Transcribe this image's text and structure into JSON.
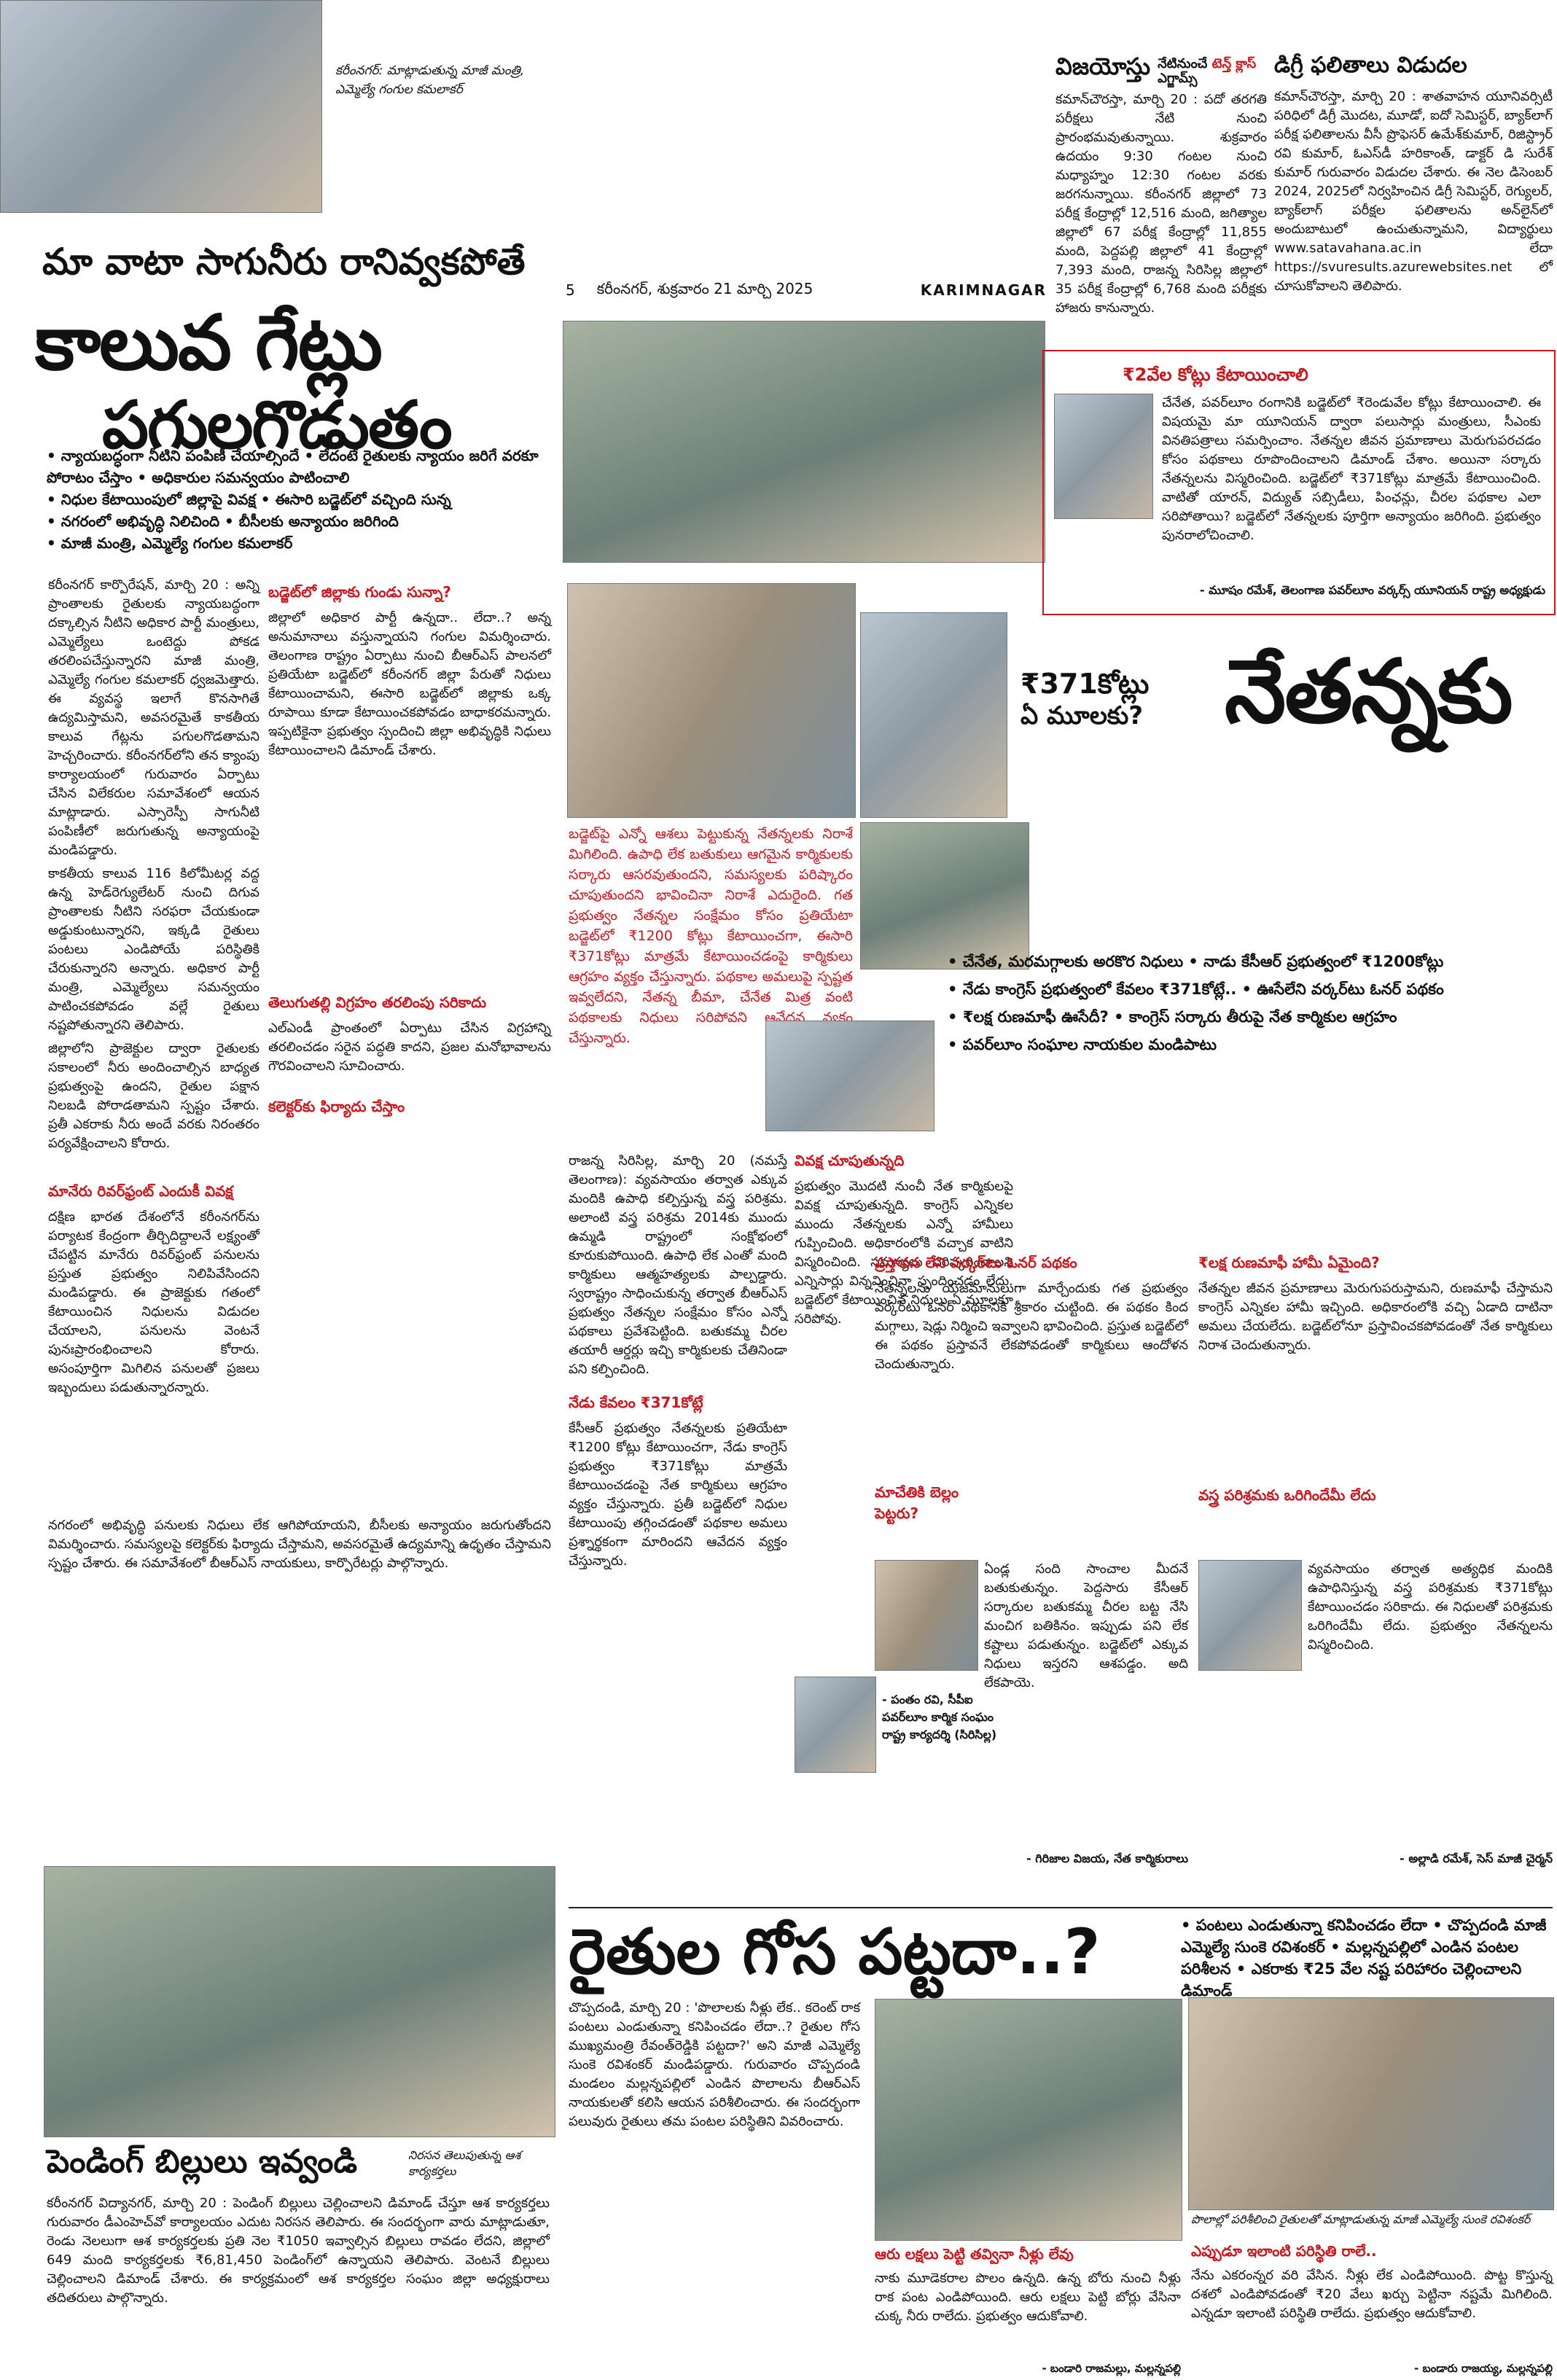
{
  "masthead": {
    "page_no": "5",
    "dateline": "కరీంనగర్, శుక్రవారం 21 మార్చి 2025",
    "section": "KARIMNAGAR"
  },
  "photo_caption_top": "కరీంనగర్: మాట్లాడుతున్న మాజీ మంత్రి, ఎమ్మెల్యే గంగుల కమలాకర్",
  "main_story": {
    "kicker": "మా వాటా సాగునీరు రానివ్వకపోతే",
    "headline_1": "కాలువ గేట్లు",
    "headline_2": "పగులగొడుతం",
    "bullets": [
      "న్యాయబద్ధంగా నీటిని పంపిణీ చేయాల్సిందే • లేదంటే రైతులకు న్యాయం జరిగే వరకూ పోరాటం చేస్తాం • అధికారుల సమన్వయం పాటించాలి",
      "నిధుల కేటాయింపులో జిల్లాపై వివక్ష • ఈసారి బడ్జెట్‌లో వచ్చింది సున్న",
      "నగరంలో అభివృద్ధి నిలిచింది • బీసీలకు అన్యాయం జరిగింది",
      "మాజీ మంత్రి, ఎమ్మెల్యే గంగుల కమలాకర్"
    ],
    "col1_text": "కరీంనగర్ కార్పొరేషన్, మార్చి 20 : అన్ని ప్రాంతాలకు రైతులకు న్యాయబద్ధంగా దక్కాల్సిన నీటిని అధికార పార్టీ మంత్రులు, ఎమ్మెల్యేలు ఒంటెద్దు పోకడ తరలింపచేస్తున్నారని మాజీ మంత్రి, ఎమ్మెల్యే గంగుల కమలాకర్ ధ్వజమెత్తారు. ఈ వ్యవస్థ ఇలాగే కొనసాగితే ఉద్యమిస్తామని, అవసరమైతే కాకతీయ కాలువ గేట్లను పగులగొడతామని హెచ్చరించారు. కరీంనగర్‌లోని తన క్యాంపు కార్యాలయంలో గురువారం ఏర్పాటు చేసిన విలేకరుల సమావేశంలో ఆయన మాట్లాడారు. ఎస్సారెస్పీ సాగునీటి పంపిణీలో జరుగుతున్న అన్యాయంపై మండిపడ్డారు.",
    "col1_text_2": "కాకతీయ కాలువ 116 కిలోమీటర్ల వద్ద ఉన్న హెడ్‌రెగ్యులేటర్ నుంచి దిగువ ప్రాంతాలకు నీటిని సరఫరా చేయకుండా అడ్డుకుంటున్నారని, ఇక్కడి రైతులు పంటలు ఎండిపోయే పరిస్థితికి చేరుకున్నారని అన్నారు. అధికార పార్టీ మంత్రి, ఎమ్మెల్యేలు సమన్వయం పాటించకపోవడం వల్లే రైతులు నష్టపోతున్నారని తెలిపారు.",
    "col1_text_3": "జిల్లాలోని ప్రాజెక్టుల ద్వారా రైతులకు సకాలంలో నీరు అందించాల్సిన బాధ్యత ప్రభుత్వంపై ఉందని, రైతుల పక్షాన నిలబడి పోరాడతామని స్పష్టం చేశారు. ప్రతీ ఎకరాకు నీరు అందే వరకు నిరంతరం పర్యవేక్షించాలని కోరారు.",
    "sub1": "బడ్జెట్‌లో జిల్లాకు గుండు సున్నా?",
    "sub1_text": "జిల్లాలో అధికార పార్టీ ఉన్నదా.. లేదా..? అన్న అనుమానాలు వస్తున్నాయని గంగుల విమర్శించారు. తెలంగాణ రాష్ట్రం ఏర్పాటు నుంచి బీఆర్ఎస్ పాలనలో ప్రతియేటా బడ్జెట్‌లో కరీంనగర్ జిల్లా పేరుతో నిధులు కేటాయించామని, ఈసారి బడ్జెట్‌లో జిల్లాకు ఒక్క రూపాయి కూడా కేటాయించకపోవడం బాధాకరమన్నారు. ఇప్పటికైనా ప్రభుత్వం స్పందించి జిల్లా అభివృద్ధికి నిధులు కేటాయించాలని డిమాండ్ చేశారు.",
    "sub2": "మానేరు రివర్‌ఫ్రంట్ ఎందుకీ వివక్ష",
    "sub2_text": "దక్షిణ భారత దేశంలోనే కరీంనగర్‌ను పర్యాటక కేంద్రంగా తీర్చిదిద్దాలనే లక్ష్యంతో చేపట్టిన మానేరు రివర్‌ఫ్రంట్ పనులను ప్రస్తుత ప్రభుత్వం నిలిపివేసిందని మండిపడ్డారు. ఈ ప్రాజెక్టుకు గతంలో కేటాయించిన నిధులను విడుదల చేయాలని, పనులను వెంటనే పునఃప్రారంభించాలని కోరారు. అసంపూర్తిగా మిగిలిన పనులతో ప్రజలు ఇబ్బందులు పడుతున్నారన్నారు.",
    "sub3": "తెలుగుతల్లి విగ్రహం తరలింపు సరికాదు",
    "sub3_text": "ఎల్‌ఎండీ ప్రాంతంలో ఏర్పాటు చేసిన విగ్రహాన్ని తరలించడం సరైన పద్ధతి కాదని, ప్రజల మనోభావాలను గౌరవించాలని సూచించారు.",
    "sub4": "కలెక్టర్‌కు ఫిర్యాదు చేస్తాం",
    "sub4_text": "నగరంలో అభివృద్ధి పనులకు నిధులు లేక ఆగిపోయాయని, బీసీలకు అన్యాయం జరుగుతోందని విమర్శించారు. సమస్యలపై కలెక్టర్‌కు ఫిర్యాదు చేస్తామని, అవసరమైతే ఉద్యమాన్ని ఉధృతం చేస్తామని స్పష్టం చేశారు. ఈ సమావేశంలో బీఆర్ఎస్ నాయకులు, కార్పొరేటర్లు పాల్గొన్నారు."
  },
  "vijayotsav": {
    "headline": "విజయోస్తు",
    "side_1": "నేటినుంచే",
    "side_2": "టెన్త్ క్లాస్",
    "side_3": "ఎగ్జామ్స్",
    "text": "కమాన్‌చౌరస్తా, మార్చి 20 : పదో తరగతి పరీక్షలు నేటి నుంచి ప్రారంభమవుతున్నాయి. శుక్రవారం ఉదయం 9:30 గంటల నుంచి మధ్యాహ్నం 12:30 గంటల వరకు జరగనున్నాయి. కరీంనగర్ జిల్లాలో 73 పరీక్ష కేంద్రాల్లో 12,516 మంది, జగిత్యాల జిల్లాలో 67 పరీక్ష కేంద్రాల్లో 11,855 మంది, పెద్దపల్లి జిల్లాలో 41 కేంద్రాల్లో 7,393 మంది, రాజన్న సిరిసిల్ల జిల్లాలో 35 పరీక్ష కేంద్రాల్లో 6,768 మంది పరీక్షకు హాజరు కానున్నారు."
  },
  "degree": {
    "headline": "డిగ్రీ ఫలితాలు విడుదల",
    "text": "కమాన్‌చౌరస్తా, మార్చి 20 : శాతవాహన యూనివర్సిటీ పరిధిలో డిగ్రీ మొదట, మూడో, ఐదో సెమిస్టర్, బ్యాక్‌లాగ్ పరీక్ష ఫలితాలను వీసీ ప్రొఫెసర్ ఉమేశ్‌కుమార్, రిజిస్ట్రార్ రవి కుమార్, ఓఎస్‌డీ హరికాంత్, డాక్టర్ డి సురేశ్ కుమార్ గురువారం విడుదల చేశారు. ఈ నెల డిసెంబర్ 2024, 2025లో నిర్వహించిన డిగ్రీ సెమిస్టర్, రెగ్యులర్, బ్యాక్‌లాగ్ పరీక్షల ఫలితాలను అన్‌లైన్‌లో అందుబాటులో ఉంచుతున్నామని, విద్యార్థులు www.satavahana.ac.in లేదా https://svuresults.azurewebsites.net లో చూసుకోవాలని తెలిపారు."
  },
  "nethanna": {
    "box_head": "₹2వేల కోట్లు కేటాయించాలి",
    "box_text": "చేనేత, పవర్‌లూం రంగానికి బడ్జెట్‌లో ₹రెండువేల కోట్లు కేటాయించాలి. ఈ విషయమై మా యూనియన్ ద్వారా పలుసార్లు మంత్రులు, సీఎంకు వినతిపత్రాలు సమర్పించాం. నేతన్నల జీవన ప్రమాణాలు మెరుగుపరచడం కోసం పథకాలు రూపొందించాలని డిమాండ్ చేశాం. అయినా సర్కారు నేతన్నలను విస్మరించింది. బడ్జెట్‌లో ₹371కోట్లు మాత్రమే కేటాయించింది. వాటితో యారన్, విద్యుత్ సబ్సిడీలు, పింఛన్లు, చీరల పథకాల ఎలా సరిపోతాయి? బడ్జెట్‌లో నేతన్నలకు పూర్తిగా అన్యాయం జరిగింది. ప్రభుత్వం పునరాలోచించాలి.",
    "box_credit": "- మూషం రమేశ్, తెలంగాణ పవర్‌లూం వర్కర్స్ యూనియన్ రాష్ట్ర అధ్యక్షుడు",
    "kicker_1": "₹371కోట్లు",
    "kicker_2": "ఏ మూలకు?",
    "headline": "నేతన్నకు",
    "red_intro": "బడ్జెట్‌పై ఎన్నో ఆశలు పెట్టుకున్న నేతన్నలకు నిరాశే మిగిలింది. ఉపాధి లేక బతుకులు ఆగమైన కార్మికులకు సర్కారు ఆసరవుతుందని, సమస్యలకు పరిష్కారం చూపుతుందని భావించినా నిరాశే ఎదురైంది. గత ప్రభుత్వం నేతన్నల సంక్షేమం కోసం ప్రతియేటా బడ్జెట్‌లో ₹1200 కోట్లు కేటాయించగా, ఈసారి ₹371కోట్లు మాత్రమే కేటాయించడంపై కార్మికులు ఆగ్రహం వ్యక్తం చేస్తున్నారు. పథకాల అమలుపై స్పష్టత ఇవ్వలేదని, నేతన్న బీమా, చేనేత మిత్ర వంటి పథకాలకు నిధులు సరిపోవని ఆవేదన వ్యక్తం చేస్తున్నారు.",
    "bullets": [
      "చేనేత, మరమగ్గాలకు అరకొర నిధులు • నాడు కేసీఆర్ ప్రభుత్వంలో ₹1200కోట్లు",
      "నేడు కాంగ్రెస్ ప్రభుత్వంలో కేవలం ₹371కోట్లే.. • ఊసేలేని వర్కర్‌టు ఓనర్ పథకం",
      "₹లక్ష రుణమాఫీ ఊసేదీ? • కాంగ్రెస్ సర్కారు తీరుపై నేత కార్మికుల ఆగ్రహం",
      "పవర్‌లూం సంఘాల నాయకుల మండిపాటు"
    ],
    "col_a": "రాజన్న సిరిసిల్ల, మార్చి 20 (నమస్తే తెలంగాణ): వ్యవసాయం తర్వాత ఎక్కువ మందికి ఉపాధి కల్పిస్తున్న వస్త్ర పరిశ్రమ. అలాంటి వస్త్ర పరిశ్రమ 2014కు ముందు ఉమ్మడి రాష్ట్రంలో సంక్షోభంలో కూరుకుపోయింది. ఉపాధి లేక ఎంతో మంది కార్మికులు ఆత్మహత్యలకు పాల్పడ్డారు. స్వరాష్ట్రం సాధించుకున్న తర్వాత బీఆర్ఎస్ ప్రభుత్వం నేతన్నల సంక్షేమం కోసం ఎన్నో పథకాలు ప్రవేశపెట్టింది. బతుకమ్మ చీరల తయారీ ఆర్డర్లు ఇచ్చి కార్మికులకు చేతినిండా పని కల్పించింది.",
    "sub_a": "నేడు కేవలం ₹371కోట్లే",
    "col_a2": "కేసీఆర్ ప్రభుత్వం నేతన్నలకు ప్రతియేటా ₹1200 కోట్లు కేటాయించగా, నేడు కాంగ్రెస్ ప్రభుత్వం ₹371కోట్లు మాత్రమే కేటాయించడంపై నేత కార్మికులు ఆగ్రహం వ్యక్తం చేస్తున్నారు. ప్రతీ బడ్జెట్‌లో నిధుల కేటాయింపు తగ్గించడంతో పథకాల అమలు ప్రశ్నార్థకంగా మారిందని ఆవేదన వ్యక్తం చేస్తున్నారు.",
    "sub_b": "వివక్ష చూపుతున్నది",
    "col_b": "ప్రభుత్వం మొదటి నుంచీ నేత కార్మికులపై వివక్ష చూపుతున్నది. కాంగ్రెస్ ఎన్నికల ముందు నేతన్నలకు ఎన్నో హామీలు గుప్పించింది. అధికారంలోకి వచ్చాక వాటిని విస్మరించింది. సమస్యలు పరిష్కరించాలని ఎన్నిసార్లు విన్నవించినా స్పందించడం లేదు. బడ్జెట్‌లో కేటాయించిన నిధులు ఏ మూలకూ సరిపోవు.",
    "credit_b": "- పంతం రవి, సీపీఐ పవర్‌లూం కార్మిక సంఘం రాష్ట్ర కార్యదర్శి (సిరిసిల్ల)",
    "sub_c": "ప్రస్తావన లేని వర్కర్‌టు ఓనర్ పథకం",
    "col_c": "నేతన్నలను యజమానులుగా మార్చేందుకు గత ప్రభుత్వం వర్కర్‌టు ఓనర్ పథకానికి శ్రీకారం చుట్టింది. ఈ పథకం కింద మగ్గాలు, షెడ్లు నిర్మించి ఇవ్వాలని భావించింది. ప్రస్తుత బడ్జెట్‌లో ఈ పథకం ప్రస్తావనే లేకపోవడంతో కార్మికులు ఆందోళన చెందుతున్నారు.",
    "sub_d": "మాచేతికి బెల్లం పెట్టరు?",
    "col_d": "ఏండ్ల సంది సాంచాల మీదనే బతుకుతున్నం. పెద్దసారు కేసీఆర్ సర్కారుల బతుకమ్మ చీరల బట్ట నేసి మంచిగ బతికినం. ఇప్పుడు పని లేక కష్టాలు పడుతున్నం. బడ్జెట్‌లో ఎక్కువ నిధులు ఇస్తరని ఆశపడ్డం. అది లేకపాయె.",
    "credit_d": "- గిరిజాల విజయ, నేత కార్మికురాలు",
    "sub_e": "₹లక్ష రుణమాఫీ హామీ ఏమైంది?",
    "col_e": "నేతన్నల జీవన ప్రమాణాలు మెరుగుపరుస్తామని, రుణమాఫీ చేస్తామని కాంగ్రెస్ ఎన్నికల హామీ ఇచ్చింది. అధికారంలోకి వచ్చి ఏడాది దాటినా అమలు చేయలేదు. బడ్జెట్‌లోనూ ప్రస్తావించకపోవడంతో నేత కార్మికులు నిరాశ చెందుతున్నారు.",
    "sub_f": "వస్త్ర పరిశ్రమకు ఒరిగిందేమీ లేదు",
    "col_f": "వ్యవసాయం తర్వాత అత్యధిక మందికి ఉపాధినిస్తున్న వస్త్ర పరిశ్రమకు ₹371కోట్లు కేటాయించడం సరికాదు. ఈ నిధులతో పరిశ్రమకు ఒరిగిందేమీ లేదు. ప్రభుత్వం నేతన్నలను విస్మరించింది.",
    "credit_f": "- అల్లాడి రమేశ్, సెస్ మాజీ చైర్మన్"
  },
  "farmers": {
    "headline": "రైతుల గోస పట్టదా..?",
    "bullets_text": "• పంటలు ఎండుతున్నా కనిపించడం లేదా • చొప్పదండి మాజీ ఎమ్మెల్యే సుంకె రవిశంకర్ • మల్లన్నపల్లిలో ఎండిన పంటల పరిశీలన • ఎకరాకు ₹25 వేల నష్ట పరిహారం చెల్లించాలని డిమాండ్",
    "text": "చొప్పదండి, మార్చి 20 : 'పొలాలకు నీళ్లు లేక.. కరెంట్ రాక పంటలు ఎండుతున్నా కనిపించడం లేదా..? రైతుల గోస ముఖ్యమంత్రి రేవంత్‌రెడ్డికి పట్టదా?' అని మాజీ ఎమ్మెల్యే సుంకె రవిశంకర్ మండిపడ్డారు. గురువారం చొప్పదండి మండలం మల్లన్నపల్లిలో ఎండిన పొలాలను బీఆర్ఎస్ నాయకులతో కలిసి ఆయన పరిశీలించారు. ఈ సందర్భంగా పలువురు రైతులు తమ పంటల పరిస్థితిని వివరించారు.",
    "sub": "ఆరు లక్షలు పెట్టి తవ్వినా నీళ్లు లేవు",
    "text2": "నాకు మూడెకరాల పొలం ఉన్నది. ఉన్న బోరు నుంచి నీళ్లు రాక పంట ఎండిపోయింది. ఆరు లక్షలు పెట్టి బోర్లు వేసినా చుక్క నీరు రాలేదు. ప్రభుత్వం ఆదుకోవాలి.",
    "credit": "- బండారి రాజమల్లు, మల్లన్నపల్లి",
    "photo_cap": "పొలాల్లో పరిశీలించి రైతులతో మాట్లాడుతున్న మాజీ ఎమ్మెల్యే సుంకె రవిశంకర్",
    "sub2": "ఎప్పుడూ ఇలాంటి పరిస్థితి రాలే..",
    "text3": "నేను ఎకరంన్నర వరి వేసిన. నీళ్లు లేక ఎండిపోయింది. పొట్ట కొస్తున్న దశలో ఎండిపోవడంతో ₹20 వేలు ఖర్చు పెట్టినా నష్టమే మిగిలింది. ఎన్నడూ ఇలాంటి పరిస్థితి రాలేదు. ప్రభుత్వం ఆదుకోవాలి.",
    "credit2": "- బండారు రాజయ్య, మల్లన్నపల్లి"
  },
  "pending": {
    "headline": "పెండింగ్ బిల్లులు ఇవ్వండి",
    "photo_cap": "నిరసన తెలుపుతున్న ఆశ కార్యకర్తలు",
    "text": "కరీంనగర్ విద్యానగర్, మార్చి 20 : పెండింగ్ బిల్లులు చెల్లించాలని డిమాండ్ చేస్తూ ఆశ కార్యకర్తలు గురువారం డీఎంహెచ్‌వో కార్యాలయం ఎదుట నిరసన తెలిపారు. ఈ సందర్భంగా వారు మాట్లాడుతూ, రెండు నెలలుగా ఆశ కార్యకర్తలకు ప్రతి నెల ₹1050 ఇవ్వాల్సిన బిల్లులు రావడం లేదని, జిల్లాలో 649 మంది కార్యకర్తలకు ₹6,81,450 పెండింగ్‌లో ఉన్నాయని తెలిపారు. వెంటనే బిల్లులు చెల్లించాలని డిమాండ్ చేశారు. ఈ కార్యక్రమంలో ఆశ కార్యకర్తల సంఘం జిల్లా అధ్యక్షురాలు తదితరులు పాల్గొన్నారు."
  }
}
